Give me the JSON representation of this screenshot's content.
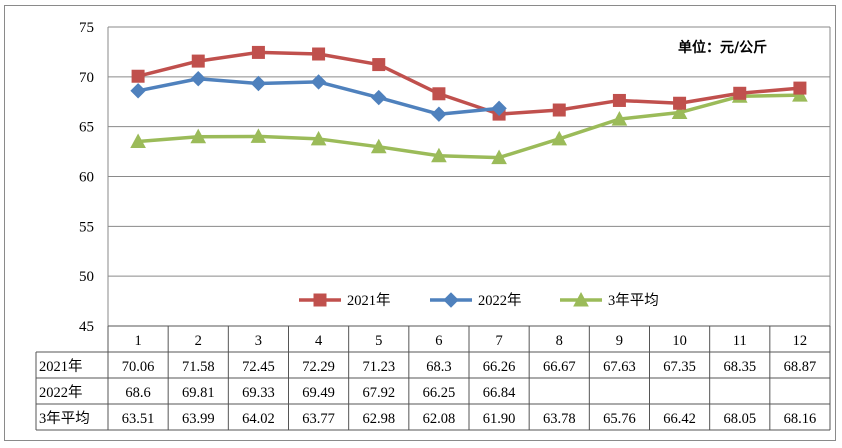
{
  "chart_data": {
    "type": "line",
    "unit_label": "单位：元/公斤",
    "categories": [
      "1",
      "2",
      "3",
      "4",
      "5",
      "6",
      "7",
      "8",
      "9",
      "10",
      "11",
      "12"
    ],
    "ylim": [
      45,
      75
    ],
    "yticks": [
      45,
      50,
      55,
      60,
      65,
      70,
      75
    ],
    "grid": true,
    "legend_position": "bottom-center",
    "series": [
      {
        "name": "2021年",
        "color": "#c0504d",
        "marker": "square",
        "values": [
          70.06,
          71.58,
          72.45,
          72.29,
          71.23,
          68.3,
          66.26,
          66.67,
          67.63,
          67.35,
          68.35,
          68.87
        ],
        "labels": [
          "70.06",
          "71.58",
          "72.45",
          "72.29",
          "71.23",
          "68.3",
          "66.26",
          "66.67",
          "67.63",
          "67.35",
          "68.35",
          "68.87"
        ]
      },
      {
        "name": "2022年",
        "color": "#4f81bd",
        "marker": "diamond",
        "values": [
          68.6,
          69.81,
          69.33,
          69.49,
          67.92,
          66.25,
          66.84,
          null,
          null,
          null,
          null,
          null
        ],
        "labels": [
          "68.6",
          "69.81",
          "69.33",
          "69.49",
          "67.92",
          "66.25",
          "66.84",
          "",
          "",
          "",
          "",
          ""
        ]
      },
      {
        "name": "3年平均",
        "color": "#9bbb59",
        "marker": "triangle",
        "values": [
          63.51,
          63.99,
          64.02,
          63.77,
          62.98,
          62.08,
          61.9,
          63.78,
          65.76,
          66.42,
          68.05,
          68.16
        ],
        "labels": [
          "63.51",
          "63.99",
          "64.02",
          "63.77",
          "62.98",
          "62.08",
          "61.90",
          "63.78",
          "65.76",
          "66.42",
          "68.05",
          "68.16"
        ]
      }
    ]
  }
}
